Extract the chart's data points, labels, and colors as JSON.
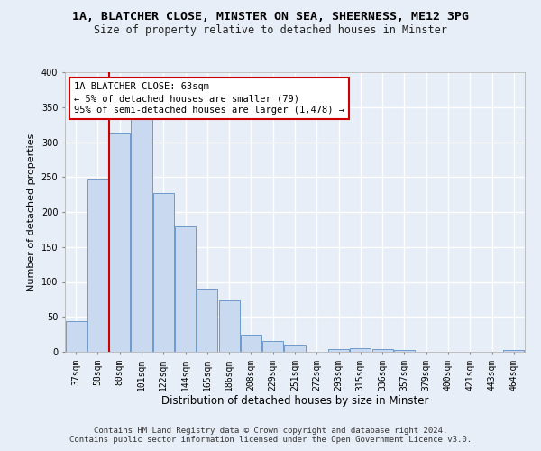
{
  "title_line1": "1A, BLATCHER CLOSE, MINSTER ON SEA, SHEERNESS, ME12 3PG",
  "title_line2": "Size of property relative to detached houses in Minster",
  "xlabel": "Distribution of detached houses by size in Minster",
  "ylabel": "Number of detached properties",
  "categories": [
    "37sqm",
    "58sqm",
    "80sqm",
    "101sqm",
    "122sqm",
    "144sqm",
    "165sqm",
    "186sqm",
    "208sqm",
    "229sqm",
    "251sqm",
    "272sqm",
    "293sqm",
    "315sqm",
    "336sqm",
    "357sqm",
    "379sqm",
    "400sqm",
    "421sqm",
    "443sqm",
    "464sqm"
  ],
  "values": [
    44,
    246,
    312,
    335,
    227,
    180,
    90,
    74,
    25,
    15,
    9,
    0,
    4,
    5,
    4,
    3,
    0,
    0,
    0,
    0,
    3
  ],
  "bar_color": "#c9d9f0",
  "bar_edge_color": "#5b8fc9",
  "annotation_box_text": "1A BLATCHER CLOSE: 63sqm\n← 5% of detached houses are smaller (79)\n95% of semi-detached houses are larger (1,478) →",
  "annotation_box_color": "#ffffff",
  "annotation_border_color": "#cc0000",
  "vline_x": 1.5,
  "vline_color": "#cc0000",
  "ylim": [
    0,
    400
  ],
  "yticks": [
    0,
    50,
    100,
    150,
    200,
    250,
    300,
    350,
    400
  ],
  "bg_color": "#e8eef7",
  "plot_bg_color": "#e8eef7",
  "grid_color": "#ffffff",
  "footer_line1": "Contains HM Land Registry data © Crown copyright and database right 2024.",
  "footer_line2": "Contains public sector information licensed under the Open Government Licence v3.0.",
  "title_fontsize": 9.5,
  "subtitle_fontsize": 8.5,
  "xlabel_fontsize": 8.5,
  "ylabel_fontsize": 8.0,
  "tick_fontsize": 7.0,
  "annot_fontsize": 7.5,
  "footer_fontsize": 6.5
}
